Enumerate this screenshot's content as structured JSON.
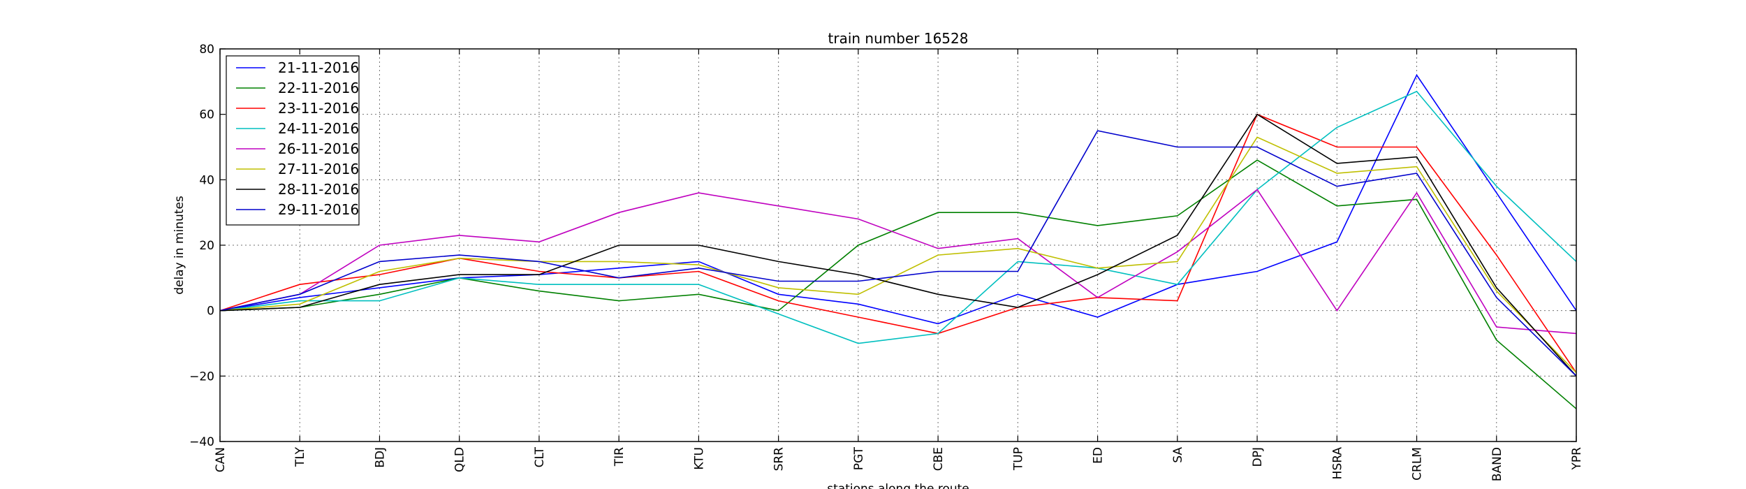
{
  "chart_data": {
    "type": "line",
    "title": "train number 16528",
    "xlabel": "stations along the route",
    "ylabel": "delay in minutes",
    "categories": [
      "CAN",
      "TLY",
      "BDJ",
      "QLD",
      "CLT",
      "TIR",
      "KTU",
      "SRR",
      "PGT",
      "CBE",
      "TUP",
      "ED",
      "SA",
      "DPJ",
      "HSRA",
      "CRLM",
      "BAND",
      "YPR"
    ],
    "ylim": [
      -40,
      80
    ],
    "yticks": [
      -40,
      -20,
      0,
      20,
      40,
      60,
      80
    ],
    "ytick_labels": [
      "−40",
      "−20",
      "0",
      "20",
      "40",
      "60",
      "80"
    ],
    "grid": true,
    "legend_position": "top-left",
    "series": [
      {
        "name": "21-11-2016",
        "color": "#0000ff",
        "values": [
          0,
          4,
          7,
          10,
          11,
          13,
          15,
          5,
          2,
          -4,
          5,
          -2,
          8,
          12,
          21,
          72,
          36,
          0
        ]
      },
      {
        "name": "22-11-2016",
        "color": "#008000",
        "values": [
          0,
          1,
          5,
          10,
          6,
          3,
          5,
          0,
          20,
          30,
          30,
          26,
          29,
          46,
          32,
          34,
          -9,
          -30
        ]
      },
      {
        "name": "23-11-2016",
        "color": "#ff0000",
        "values": [
          0,
          8,
          11,
          16,
          12,
          10,
          12,
          3,
          -2,
          -7,
          1,
          4,
          3,
          60,
          50,
          50,
          17,
          -19
        ]
      },
      {
        "name": "24-11-2016",
        "color": "#00bfbf",
        "values": [
          0,
          3,
          3,
          10,
          8,
          8,
          8,
          -1,
          -10,
          -7,
          15,
          13,
          8,
          37,
          56,
          67,
          38,
          15
        ]
      },
      {
        "name": "26-11-2016",
        "color": "#bf00bf",
        "values": [
          0,
          5,
          20,
          23,
          21,
          30,
          36,
          32,
          28,
          19,
          22,
          4,
          18,
          37,
          0,
          36,
          -5,
          -7
        ]
      },
      {
        "name": "27-11-2016",
        "color": "#bfbf00",
        "values": [
          0,
          2,
          12,
          16,
          15,
          15,
          14,
          7,
          5,
          17,
          19,
          13,
          15,
          53,
          42,
          44,
          6,
          -19
        ]
      },
      {
        "name": "28-11-2016",
        "color": "#000000",
        "values": [
          0,
          1,
          8,
          11,
          11,
          20,
          20,
          15,
          11,
          5,
          1,
          11,
          23,
          60,
          45,
          47,
          7,
          -20
        ]
      },
      {
        "name": "29-11-2016",
        "color": "#0000cc",
        "values": [
          0,
          5,
          15,
          17,
          15,
          10,
          13,
          9,
          9,
          12,
          12,
          55,
          50,
          50,
          38,
          42,
          4,
          -20
        ]
      }
    ]
  }
}
